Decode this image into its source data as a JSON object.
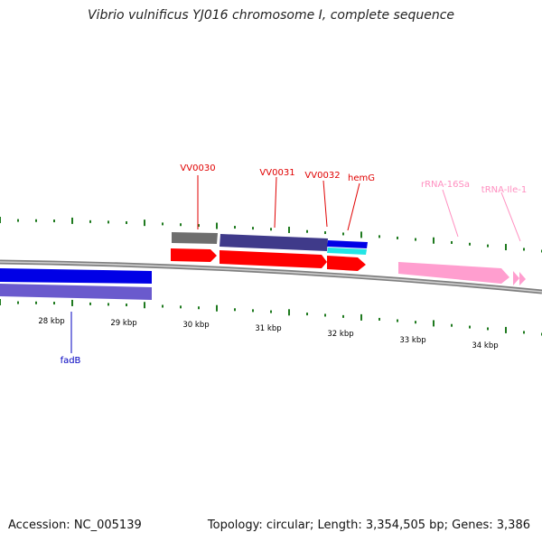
{
  "title": "Vibrio vulnificus YJ016 chromosome I, complete sequence",
  "accession_line": "Accession: NC_005139",
  "topology_line": "Topology: circular; Length: 3,354,505 bp; Genes: 3,386",
  "colors": {
    "backbone_outer": "#808080",
    "backbone_inner": "#cfcfcf",
    "tick": "#1f7a1f",
    "gene_red": "#ff0000",
    "gene_blue": "#0000e6",
    "gene_purple": "#6a5acd",
    "gene_navy": "#3f3a8a",
    "gene_grey": "#6e6e6e",
    "gene_cyan": "#22e5e5",
    "rna_pink": "#ff9ecf",
    "label_red": "#e00000",
    "label_pink": "#ff8fc0",
    "label_blue": "#0000c0"
  },
  "kbp_labels": [
    "28 kbp",
    "29 kbp",
    "30 kbp",
    "31 kbp",
    "32 kbp",
    "33 kbp",
    "34 kbp"
  ],
  "features": {
    "vv0030": "VV0030",
    "vv0031": "VV0031",
    "vv0032": "VV0032",
    "hemG": "hemG",
    "rrna16s": "rRNA-16Sa",
    "trnaile": "tRNA-Ile-1",
    "fadB": "fadB"
  }
}
